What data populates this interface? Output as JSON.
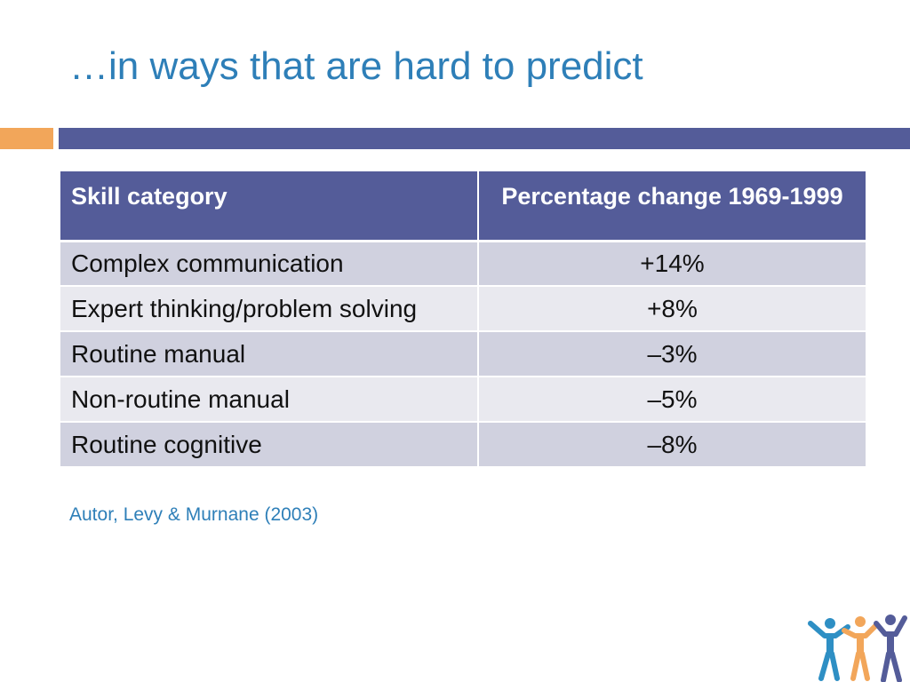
{
  "slide": {
    "title": "…in ways that are hard to predict",
    "source": "Autor, Levy & Murnane (2003)"
  },
  "table": {
    "headers": {
      "skill": "Skill category",
      "change": "Percentage change 1969-1999"
    },
    "rows": [
      {
        "skill": "Complex communication",
        "change": "+14%"
      },
      {
        "skill": "Expert thinking/problem solving",
        "change": "+8%"
      },
      {
        "skill": "Routine manual",
        "change": "–3%"
      },
      {
        "skill": "Non-routine manual",
        "change": "–5%"
      },
      {
        "skill": "Routine cognitive",
        "change": "–8%"
      }
    ]
  },
  "colors": {
    "title": "#2e7fb8",
    "accent_orange": "#f2a65a",
    "header_bar": "#545c99",
    "row_odd": "#d0d1df",
    "row_even": "#e9e9ef",
    "logo_blue": "#2e8fc4",
    "logo_orange": "#f2a65a",
    "logo_purple": "#545c99"
  },
  "icons": {
    "logo": "people-group-logo-icon"
  }
}
